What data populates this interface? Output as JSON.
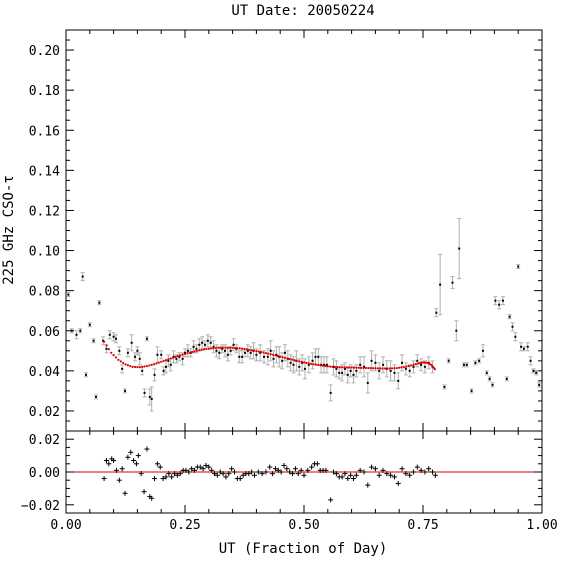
{
  "chart_data": {
    "type": "scatter",
    "title": "UT Date: 20050224",
    "xlabel": "UT (Fraction of Day)",
    "ylabel": "225 GHz CSO-τ",
    "xlim": [
      0,
      1
    ],
    "x_ticks": [
      "0.00",
      "0.25",
      "0.50",
      "0.75",
      "1.00"
    ],
    "main_panel": {
      "ylim": [
        0.01,
        0.21
      ],
      "y_ticks": [
        "0.02",
        "0.04",
        "0.06",
        "0.08",
        "0.10",
        "0.12",
        "0.14",
        "0.16",
        "0.18",
        "0.20"
      ],
      "points_color": "#000000",
      "errorbar_color": "#b0b0b0",
      "fit_color": "#e00000",
      "measurements": [
        [
          0.005,
          0.078,
          0.001
        ],
        [
          0.012,
          0.06,
          0.001
        ],
        [
          0.022,
          0.058,
          0.002
        ],
        [
          0.03,
          0.06,
          0.001
        ],
        [
          0.035,
          0.087,
          0.002
        ],
        [
          0.042,
          0.038,
          0.001
        ],
        [
          0.05,
          0.063,
          0.001
        ],
        [
          0.058,
          0.055,
          0.001
        ],
        [
          0.063,
          0.027,
          0.001
        ],
        [
          0.07,
          0.074,
          0.001
        ],
        [
          0.078,
          0.055,
          0.002
        ],
        [
          0.085,
          0.051,
          0.002
        ],
        [
          0.092,
          0.058,
          0.002
        ],
        [
          0.1,
          0.057,
          0.002
        ],
        [
          0.105,
          0.056,
          0.002
        ],
        [
          0.112,
          0.05,
          0.002
        ],
        [
          0.118,
          0.041,
          0.002
        ],
        [
          0.124,
          0.03,
          0.001
        ],
        [
          0.13,
          0.049,
          0.002
        ],
        [
          0.138,
          0.054,
          0.004
        ],
        [
          0.145,
          0.047,
          0.002
        ],
        [
          0.15,
          0.05,
          0.002
        ],
        [
          0.155,
          0.046,
          0.003
        ],
        [
          0.16,
          0.04,
          0.002
        ],
        [
          0.165,
          0.029,
          0.002
        ],
        [
          0.17,
          0.056,
          0.001
        ],
        [
          0.176,
          0.027,
          0.004
        ],
        [
          0.18,
          0.026,
          0.006
        ],
        [
          0.186,
          0.038,
          0.003
        ],
        [
          0.192,
          0.048,
          0.004
        ],
        [
          0.2,
          0.048,
          0.002
        ],
        [
          0.205,
          0.04,
          0.002
        ],
        [
          0.21,
          0.042,
          0.003
        ],
        [
          0.215,
          0.045,
          0.003
        ],
        [
          0.22,
          0.043,
          0.003
        ],
        [
          0.226,
          0.047,
          0.003
        ],
        [
          0.232,
          0.046,
          0.002
        ],
        [
          0.238,
          0.047,
          0.002
        ],
        [
          0.245,
          0.046,
          0.003
        ],
        [
          0.25,
          0.049,
          0.002
        ],
        [
          0.256,
          0.05,
          0.003
        ],
        [
          0.262,
          0.049,
          0.002
        ],
        [
          0.268,
          0.052,
          0.003
        ],
        [
          0.274,
          0.051,
          0.002
        ],
        [
          0.28,
          0.053,
          0.003
        ],
        [
          0.286,
          0.054,
          0.003
        ],
        [
          0.292,
          0.053,
          0.002
        ],
        [
          0.298,
          0.055,
          0.003
        ],
        [
          0.304,
          0.054,
          0.003
        ],
        [
          0.31,
          0.052,
          0.003
        ],
        [
          0.316,
          0.05,
          0.003
        ],
        [
          0.322,
          0.049,
          0.003
        ],
        [
          0.328,
          0.051,
          0.002
        ],
        [
          0.334,
          0.05,
          0.003
        ],
        [
          0.34,
          0.048,
          0.003
        ],
        [
          0.346,
          0.05,
          0.002
        ],
        [
          0.352,
          0.053,
          0.003
        ],
        [
          0.358,
          0.051,
          0.002
        ],
        [
          0.364,
          0.047,
          0.003
        ],
        [
          0.37,
          0.047,
          0.003
        ],
        [
          0.376,
          0.049,
          0.002
        ],
        [
          0.382,
          0.05,
          0.003
        ],
        [
          0.388,
          0.049,
          0.003
        ],
        [
          0.394,
          0.05,
          0.004
        ],
        [
          0.4,
          0.048,
          0.003
        ],
        [
          0.408,
          0.049,
          0.004
        ],
        [
          0.416,
          0.047,
          0.003
        ],
        [
          0.424,
          0.047,
          0.004
        ],
        [
          0.43,
          0.05,
          0.005
        ],
        [
          0.436,
          0.046,
          0.004
        ],
        [
          0.442,
          0.048,
          0.004
        ],
        [
          0.448,
          0.047,
          0.005
        ],
        [
          0.454,
          0.045,
          0.004
        ],
        [
          0.46,
          0.049,
          0.004
        ],
        [
          0.466,
          0.046,
          0.004
        ],
        [
          0.472,
          0.044,
          0.004
        ],
        [
          0.478,
          0.043,
          0.004
        ],
        [
          0.484,
          0.045,
          0.005
        ],
        [
          0.49,
          0.042,
          0.004
        ],
        [
          0.496,
          0.044,
          0.004
        ],
        [
          0.502,
          0.041,
          0.005
        ],
        [
          0.51,
          0.043,
          0.004
        ],
        [
          0.518,
          0.045,
          0.004
        ],
        [
          0.524,
          0.047,
          0.004
        ],
        [
          0.53,
          0.047,
          0.004
        ],
        [
          0.536,
          0.043,
          0.004
        ],
        [
          0.542,
          0.043,
          0.004
        ],
        [
          0.548,
          0.043,
          0.004
        ],
        [
          0.556,
          0.029,
          0.004
        ],
        [
          0.562,
          0.042,
          0.004
        ],
        [
          0.568,
          0.041,
          0.004
        ],
        [
          0.574,
          0.039,
          0.003
        ],
        [
          0.58,
          0.039,
          0.004
        ],
        [
          0.586,
          0.041,
          0.003
        ],
        [
          0.592,
          0.038,
          0.004
        ],
        [
          0.598,
          0.04,
          0.003
        ],
        [
          0.604,
          0.038,
          0.004
        ],
        [
          0.61,
          0.04,
          0.003
        ],
        [
          0.618,
          0.043,
          0.004
        ],
        [
          0.626,
          0.042,
          0.005
        ],
        [
          0.634,
          0.034,
          0.005
        ],
        [
          0.642,
          0.045,
          0.005
        ],
        [
          0.65,
          0.044,
          0.004
        ],
        [
          0.658,
          0.04,
          0.004
        ],
        [
          0.666,
          0.043,
          0.004
        ],
        [
          0.674,
          0.041,
          0.004
        ],
        [
          0.682,
          0.04,
          0.005
        ],
        [
          0.69,
          0.039,
          0.004
        ],
        [
          0.698,
          0.035,
          0.004
        ],
        [
          0.706,
          0.044,
          0.004
        ],
        [
          0.714,
          0.041,
          0.003
        ],
        [
          0.722,
          0.04,
          0.003
        ],
        [
          0.73,
          0.042,
          0.003
        ],
        [
          0.738,
          0.045,
          0.003
        ],
        [
          0.746,
          0.043,
          0.003
        ],
        [
          0.754,
          0.042,
          0.003
        ],
        [
          0.762,
          0.044,
          0.003
        ],
        [
          0.77,
          0.042,
          0.003
        ],
        [
          0.778,
          0.069,
          0.002
        ],
        [
          0.786,
          0.083,
          0.015
        ],
        [
          0.795,
          0.032,
          0.001
        ],
        [
          0.804,
          0.045,
          0.001
        ],
        [
          0.812,
          0.084,
          0.003
        ],
        [
          0.82,
          0.06,
          0.005
        ],
        [
          0.826,
          0.101,
          0.015
        ],
        [
          0.836,
          0.043,
          0.001
        ],
        [
          0.842,
          0.043,
          0.001
        ],
        [
          0.852,
          0.03,
          0.001
        ],
        [
          0.86,
          0.044,
          0.001
        ],
        [
          0.868,
          0.045,
          0.001
        ],
        [
          0.876,
          0.05,
          0.003
        ],
        [
          0.884,
          0.039,
          0.001
        ],
        [
          0.89,
          0.036,
          0.001
        ],
        [
          0.896,
          0.033,
          0.001
        ],
        [
          0.902,
          0.075,
          0.002
        ],
        [
          0.91,
          0.073,
          0.002
        ],
        [
          0.918,
          0.075,
          0.002
        ],
        [
          0.926,
          0.036,
          0.001
        ],
        [
          0.932,
          0.067,
          0.001
        ],
        [
          0.938,
          0.062,
          0.002
        ],
        [
          0.944,
          0.057,
          0.002
        ],
        [
          0.95,
          0.092,
          0.001
        ],
        [
          0.956,
          0.052,
          0.002
        ],
        [
          0.962,
          0.051,
          0.001
        ],
        [
          0.97,
          0.052,
          0.002
        ],
        [
          0.976,
          0.045,
          0.002
        ],
        [
          0.982,
          0.04,
          0.001
        ],
        [
          0.988,
          0.039,
          0.001
        ],
        [
          0.994,
          0.033,
          0.001
        ]
      ],
      "fit": [
        [
          0.08,
          0.0545
        ],
        [
          0.095,
          0.049
        ],
        [
          0.11,
          0.0455
        ],
        [
          0.125,
          0.0432
        ],
        [
          0.14,
          0.042
        ],
        [
          0.155,
          0.0418
        ],
        [
          0.17,
          0.0424
        ],
        [
          0.185,
          0.0433
        ],
        [
          0.2,
          0.0445
        ],
        [
          0.215,
          0.0458
        ],
        [
          0.23,
          0.047
        ],
        [
          0.245,
          0.0481
        ],
        [
          0.26,
          0.0491
        ],
        [
          0.275,
          0.05
        ],
        [
          0.29,
          0.0507
        ],
        [
          0.305,
          0.0512
        ],
        [
          0.32,
          0.0515
        ],
        [
          0.335,
          0.0516
        ],
        [
          0.35,
          0.0515
        ],
        [
          0.365,
          0.0512
        ],
        [
          0.38,
          0.0507
        ],
        [
          0.395,
          0.0501
        ],
        [
          0.41,
          0.0494
        ],
        [
          0.425,
          0.0486
        ],
        [
          0.44,
          0.0477
        ],
        [
          0.455,
          0.0468
        ],
        [
          0.47,
          0.0459
        ],
        [
          0.485,
          0.045
        ],
        [
          0.5,
          0.0442
        ],
        [
          0.515,
          0.0435
        ],
        [
          0.53,
          0.0429
        ],
        [
          0.545,
          0.0424
        ],
        [
          0.56,
          0.042
        ],
        [
          0.575,
          0.0418
        ],
        [
          0.59,
          0.0417
        ],
        [
          0.605,
          0.0416
        ],
        [
          0.62,
          0.0415
        ],
        [
          0.635,
          0.0414
        ],
        [
          0.65,
          0.0413
        ],
        [
          0.665,
          0.0412
        ],
        [
          0.68,
          0.0412
        ],
        [
          0.695,
          0.0414
        ],
        [
          0.71,
          0.0419
        ],
        [
          0.725,
          0.0427
        ],
        [
          0.74,
          0.0437
        ],
        [
          0.75,
          0.0442
        ],
        [
          0.76,
          0.044
        ],
        [
          0.768,
          0.0428
        ],
        [
          0.775,
          0.0408
        ]
      ]
    },
    "residual_panel": {
      "ylim": [
        -0.025,
        0.025
      ],
      "y_ticks": [
        "−0.02",
        "0.00",
        "0.02"
      ],
      "zero_line_color": "#e00000",
      "points": [
        [
          0.08,
          -0.004
        ],
        [
          0.085,
          0.007
        ],
        [
          0.09,
          0.005
        ],
        [
          0.096,
          0.008
        ],
        [
          0.1,
          0.007
        ],
        [
          0.106,
          0.001
        ],
        [
          0.112,
          -0.005
        ],
        [
          0.118,
          0.002
        ],
        [
          0.124,
          -0.013
        ],
        [
          0.13,
          0.009
        ],
        [
          0.136,
          0.012
        ],
        [
          0.142,
          0.007
        ],
        [
          0.148,
          0.005
        ],
        [
          0.152,
          0.01
        ],
        [
          0.158,
          -0.001
        ],
        [
          0.164,
          -0.012
        ],
        [
          0.17,
          0.014
        ],
        [
          0.176,
          -0.015
        ],
        [
          0.18,
          -0.016
        ],
        [
          0.186,
          -0.004
        ],
        [
          0.192,
          0.005
        ],
        [
          0.198,
          0.003
        ],
        [
          0.204,
          -0.004
        ],
        [
          0.21,
          -0.003
        ],
        [
          0.216,
          -0.001
        ],
        [
          0.222,
          -0.003
        ],
        [
          0.228,
          -0.001
        ],
        [
          0.234,
          -0.002
        ],
        [
          0.24,
          -0.001
        ],
        [
          0.246,
          0.001
        ],
        [
          0.252,
          0.001
        ],
        [
          0.258,
          0.0
        ],
        [
          0.264,
          0.002
        ],
        [
          0.27,
          0.001
        ],
        [
          0.276,
          0.003
        ],
        [
          0.282,
          0.003
        ],
        [
          0.288,
          0.002
        ],
        [
          0.294,
          0.004
        ],
        [
          0.3,
          0.003
        ],
        [
          0.306,
          0.001
        ],
        [
          0.312,
          -0.001
        ],
        [
          0.318,
          -0.002
        ],
        [
          0.324,
          0.0
        ],
        [
          0.33,
          -0.001
        ],
        [
          0.336,
          -0.003
        ],
        [
          0.342,
          -0.001
        ],
        [
          0.348,
          0.002
        ],
        [
          0.354,
          0.0
        ],
        [
          0.36,
          -0.004
        ],
        [
          0.366,
          -0.004
        ],
        [
          0.372,
          -0.002
        ],
        [
          0.378,
          -0.001
        ],
        [
          0.384,
          -0.001
        ],
        [
          0.39,
          0.0
        ],
        [
          0.396,
          -0.002
        ],
        [
          0.404,
          0.0
        ],
        [
          0.412,
          -0.001
        ],
        [
          0.42,
          0.0
        ],
        [
          0.428,
          0.003
        ],
        [
          0.434,
          -0.001
        ],
        [
          0.44,
          0.002
        ],
        [
          0.446,
          0.001
        ],
        [
          0.452,
          0.0
        ],
        [
          0.458,
          0.004
        ],
        [
          0.464,
          0.002
        ],
        [
          0.47,
          0.0
        ],
        [
          0.476,
          -0.001
        ],
        [
          0.482,
          0.002
        ],
        [
          0.488,
          -0.001
        ],
        [
          0.494,
          0.001
        ],
        [
          0.5,
          -0.002
        ],
        [
          0.508,
          0.001
        ],
        [
          0.516,
          0.003
        ],
        [
          0.522,
          0.005
        ],
        [
          0.528,
          0.005
        ],
        [
          0.534,
          0.001
        ],
        [
          0.54,
          0.001
        ],
        [
          0.546,
          0.001
        ],
        [
          0.556,
          -0.017
        ],
        [
          0.562,
          0.0
        ],
        [
          0.568,
          -0.001
        ],
        [
          0.574,
          -0.003
        ],
        [
          0.58,
          -0.003
        ],
        [
          0.586,
          -0.001
        ],
        [
          0.592,
          -0.004
        ],
        [
          0.598,
          -0.002
        ],
        [
          0.604,
          -0.004
        ],
        [
          0.61,
          -0.002
        ],
        [
          0.618,
          0.001
        ],
        [
          0.626,
          0.0
        ],
        [
          0.634,
          -0.008
        ],
        [
          0.642,
          0.003
        ],
        [
          0.65,
          0.002
        ],
        [
          0.658,
          -0.002
        ],
        [
          0.666,
          0.001
        ],
        [
          0.674,
          -0.001
        ],
        [
          0.682,
          -0.002
        ],
        [
          0.69,
          -0.003
        ],
        [
          0.698,
          -0.007
        ],
        [
          0.706,
          0.002
        ],
        [
          0.714,
          -0.001
        ],
        [
          0.722,
          -0.002
        ],
        [
          0.73,
          0.0
        ],
        [
          0.738,
          0.003
        ],
        [
          0.746,
          0.001
        ],
        [
          0.754,
          0.0
        ],
        [
          0.762,
          0.002
        ],
        [
          0.77,
          0.0
        ],
        [
          0.776,
          -0.002
        ]
      ]
    }
  }
}
